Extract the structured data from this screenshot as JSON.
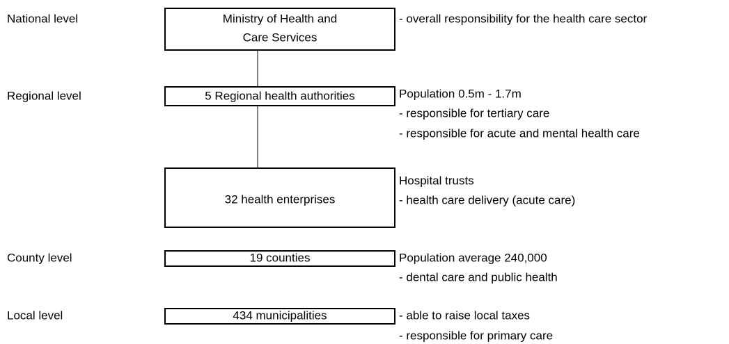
{
  "rows": [
    {
      "level": "National level",
      "box": [
        "Ministry of Health and",
        "Care Services"
      ],
      "notes": [
        "- overall responsibility for the health care sector"
      ]
    },
    {
      "level": "Regional level",
      "box": [
        "5 Regional health authorities"
      ],
      "notes": [
        "Population 0.5m - 1.7m",
        "- responsible for tertiary care",
        "- responsible for acute and mental health care"
      ]
    },
    {
      "box": [
        "32 health enterprises"
      ],
      "notes": [
        "Hospital trusts",
        "- health care delivery (acute care)"
      ]
    },
    {
      "level": "County level",
      "box": [
        "19 counties"
      ],
      "notes": [
        "Population average 240,000",
        "- dental care and public health"
      ]
    },
    {
      "level": "Local level",
      "box": [
        "434 municipalities"
      ],
      "notes": [
        "- able to raise local taxes",
        "- responsible for primary care"
      ]
    }
  ]
}
